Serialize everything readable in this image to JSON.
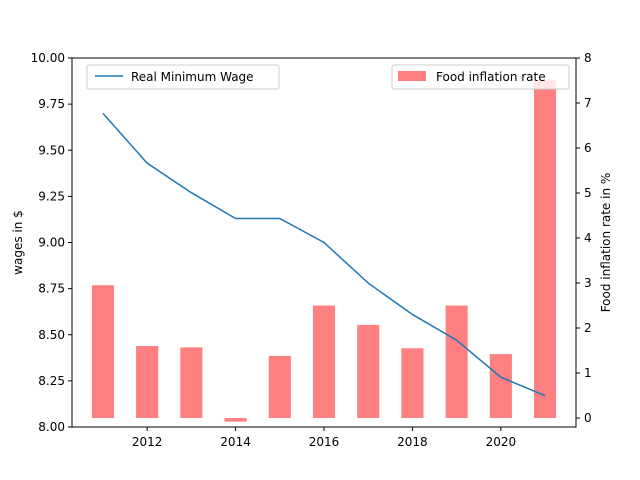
{
  "chart_data": {
    "type": "bar+line",
    "title": "",
    "xlabel": "",
    "x": [
      2011,
      2012,
      2013,
      2014,
      2015,
      2016,
      2017,
      2018,
      2019,
      2020,
      2021
    ],
    "xlim": [
      2010.3,
      2021.7
    ],
    "xticks": [
      2012,
      2014,
      2016,
      2018,
      2020
    ],
    "left_axis": {
      "label": "wages in $",
      "ylim": [
        8.0,
        10.0
      ],
      "ticks": [
        "8.00",
        "8.25",
        "8.50",
        "8.75",
        "9.00",
        "9.25",
        "9.50",
        "9.75",
        "10.00"
      ]
    },
    "right_axis": {
      "label": "Food inflation rate in %",
      "ylim": [
        -0.2,
        8.0
      ],
      "ticks": [
        "0",
        "1",
        "2",
        "3",
        "4",
        "5",
        "6",
        "7",
        "8"
      ]
    },
    "series": [
      {
        "name": "Real Minimum Wage",
        "kind": "line",
        "axis": "left",
        "color": "#1f77b4",
        "values": [
          9.7,
          9.43,
          9.27,
          9.13,
          9.13,
          9.0,
          8.78,
          8.61,
          8.47,
          8.27,
          8.17
        ]
      },
      {
        "name": "Food inflation rate",
        "kind": "bar",
        "axis": "right",
        "color": "#ff8080",
        "values": [
          2.95,
          1.6,
          1.57,
          -0.08,
          1.38,
          2.5,
          2.07,
          1.55,
          2.5,
          1.42,
          7.5
        ]
      }
    ],
    "legend": {
      "line_entry": {
        "label": "Real Minimum Wage",
        "placement": "upper-left"
      },
      "bar_entry": {
        "label": "Food inflation rate",
        "placement": "upper-right"
      }
    },
    "grid": false
  }
}
